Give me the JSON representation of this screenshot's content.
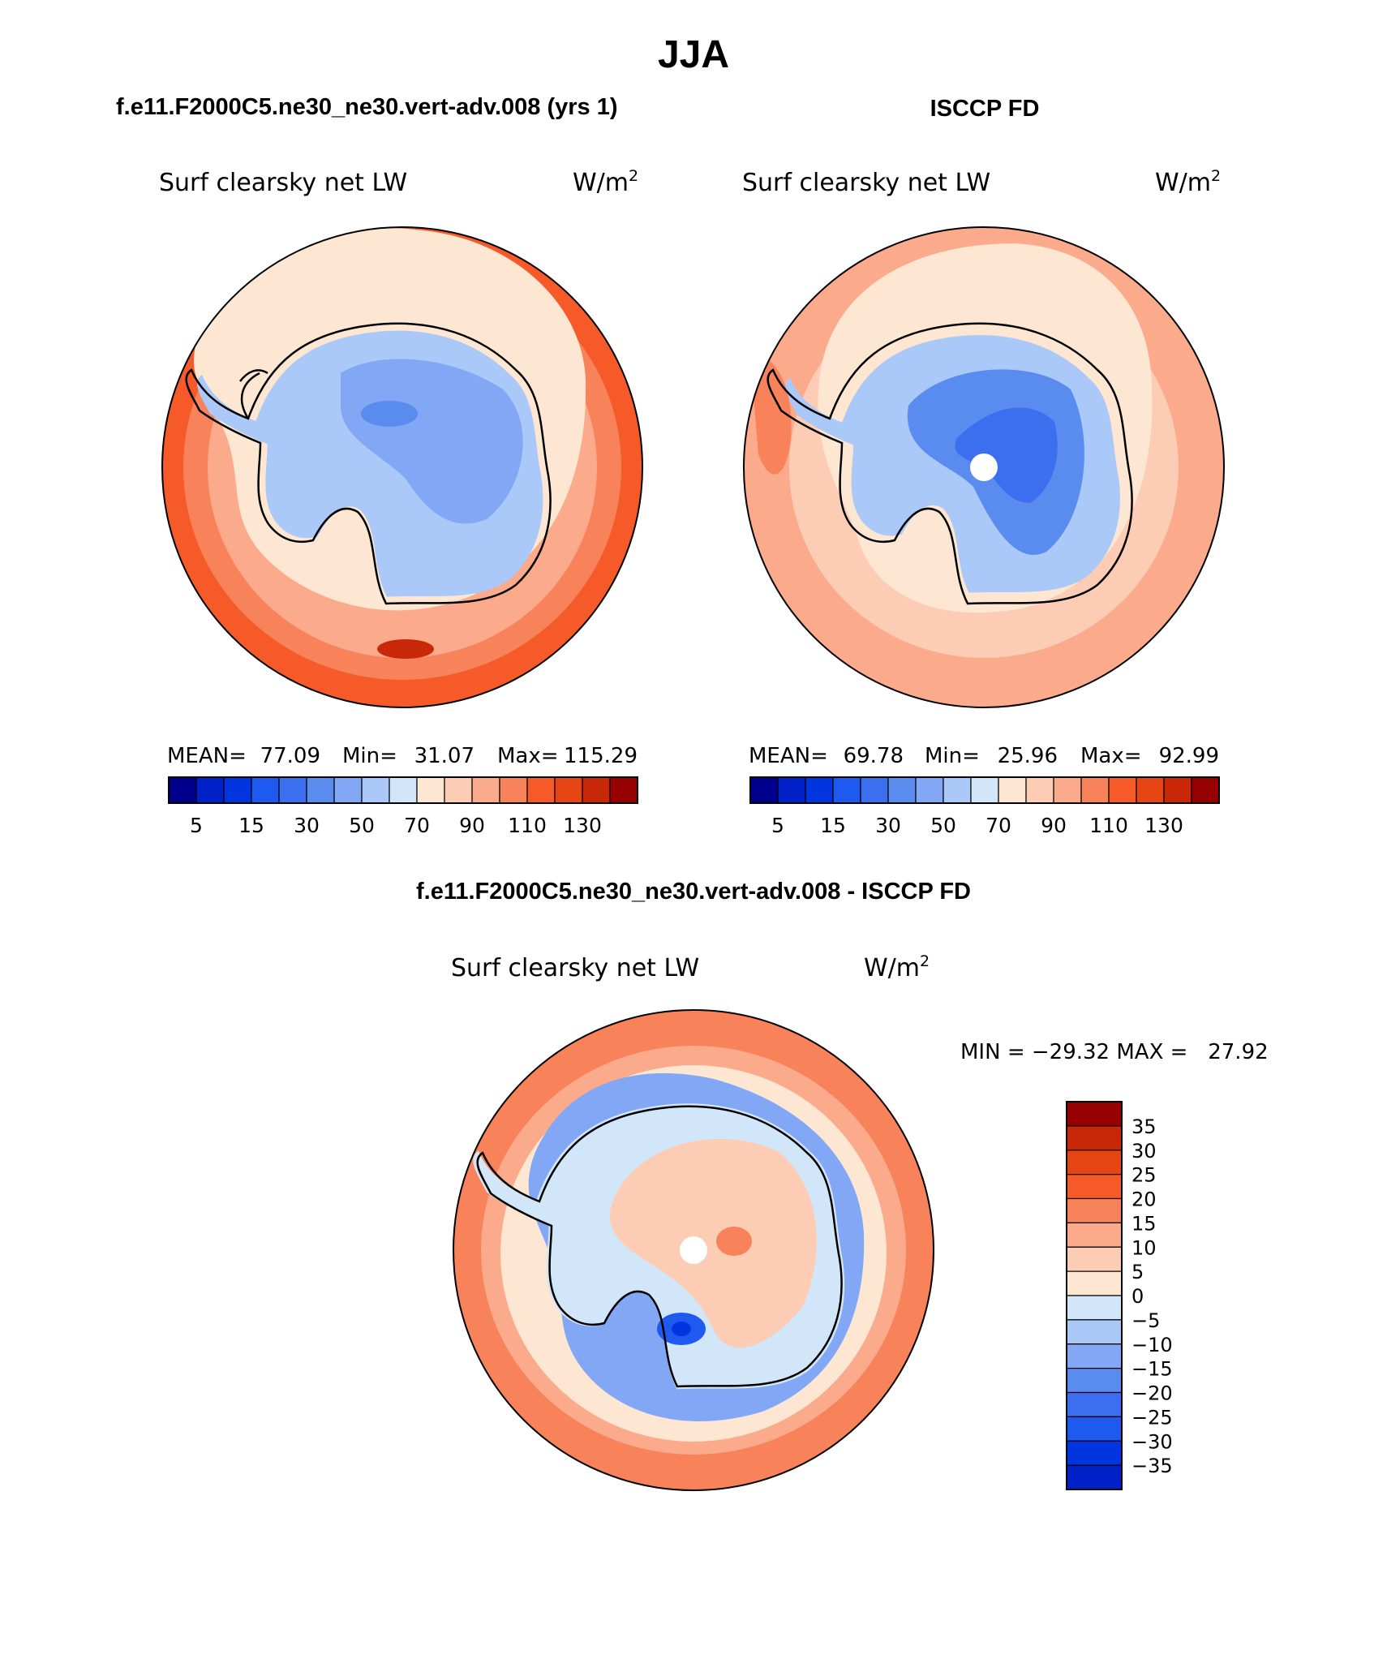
{
  "title": "JJA",
  "chart_data": [
    {
      "type": "heatmap",
      "panel": "top-left",
      "case_title": "f.e11.F2000C5.ne30_ne30.vert-adv.008 (yrs 1)",
      "variable": "Surf clearsky net LW",
      "units_base": "W/m",
      "units_exp": "2",
      "projection": "south-polar-stereographic",
      "stats": {
        "mean_label": "MEAN=",
        "mean": "77.09",
        "min_label": "Min=",
        "min": "31.07",
        "max_label": "Max=",
        "max": "115.29"
      },
      "colorbar": {
        "orientation": "horizontal",
        "tick_labels": [
          "5",
          "15",
          "30",
          "50",
          "70",
          "90",
          "110",
          "130"
        ],
        "colors": [
          "#00008c",
          "#0020c8",
          "#0035e0",
          "#1f5af0",
          "#3c6ef0",
          "#5a8cf0",
          "#82a8f5",
          "#aac8f8",
          "#d2e6fa",
          "#fde6d2",
          "#fccdb4",
          "#fbaa8c",
          "#f8825a",
          "#f55a28",
          "#e64614",
          "#c82808",
          "#960000"
        ]
      },
      "field_rings": [
        {
          "level": "outer-ocean",
          "color": "#f55a28"
        },
        {
          "level": "mid-ocean",
          "color": "#f8825a"
        },
        {
          "level": "sea-ice-edge",
          "color": "#fbaa8c"
        },
        {
          "level": "coast",
          "color": "#fde6d2"
        },
        {
          "level": "plateau",
          "color": "#aac8f8"
        },
        {
          "level": "interior",
          "color": "#82a8f5"
        }
      ]
    },
    {
      "type": "heatmap",
      "panel": "top-right",
      "case_title": "ISCCP FD",
      "variable": "Surf clearsky net LW",
      "units_base": "W/m",
      "units_exp": "2",
      "projection": "south-polar-stereographic",
      "stats": {
        "mean_label": "MEAN=",
        "mean": "69.78",
        "min_label": "Min=",
        "min": "25.96",
        "max_label": "Max=",
        "max": "92.99"
      },
      "colorbar": {
        "orientation": "horizontal",
        "tick_labels": [
          "5",
          "15",
          "30",
          "50",
          "70",
          "90",
          "110",
          "130"
        ],
        "colors": [
          "#00008c",
          "#0020c8",
          "#0035e0",
          "#1f5af0",
          "#3c6ef0",
          "#5a8cf0",
          "#82a8f5",
          "#aac8f8",
          "#d2e6fa",
          "#fde6d2",
          "#fccdb4",
          "#fbaa8c",
          "#f8825a",
          "#f55a28",
          "#e64614",
          "#c82808",
          "#960000"
        ]
      },
      "field_rings": [
        {
          "level": "outer-ocean",
          "color": "#fbaa8c"
        },
        {
          "level": "sea-ice-edge",
          "color": "#fccdb4"
        },
        {
          "level": "coast",
          "color": "#fde6d2"
        },
        {
          "level": "plateau",
          "color": "#aac8f8"
        },
        {
          "level": "interior",
          "color": "#5a8cf0"
        },
        {
          "level": "dome",
          "color": "#3c6ef0"
        }
      ]
    },
    {
      "type": "heatmap",
      "panel": "bottom",
      "case_title": "f.e11.F2000C5.ne30_ne30.vert-adv.008 - ISCCP FD",
      "variable": "Surf clearsky net LW",
      "units_base": "W/m",
      "units_exp": "2",
      "projection": "south-polar-stereographic",
      "stats_text": "MIN = −29.32 MAX =   27.92",
      "colorbar": {
        "orientation": "vertical",
        "tick_labels": [
          "35",
          "30",
          "25",
          "20",
          "15",
          "10",
          "5",
          "0",
          "−5",
          "−10",
          "−15",
          "−20",
          "−25",
          "−30",
          "−35"
        ],
        "colors": [
          "#960000",
          "#c82808",
          "#e64614",
          "#f55a28",
          "#f8825a",
          "#fbaa8c",
          "#fccdb4",
          "#fde6d2",
          "#d2e6fa",
          "#aac8f8",
          "#82a8f5",
          "#5a8cf0",
          "#3c6ef0",
          "#1f5af0",
          "#0035e0",
          "#0020c8"
        ]
      },
      "field_rings": [
        {
          "level": "outer-ocean",
          "color": "#f8825a"
        },
        {
          "level": "mid-ocean",
          "color": "#fbaa8c"
        },
        {
          "level": "sea-ice-edge",
          "color": "#fde6d2"
        },
        {
          "level": "coastal-ocean",
          "color": "#82a8f5"
        },
        {
          "level": "coast",
          "color": "#d2e6fa"
        },
        {
          "level": "interior",
          "color": "#fccdb4"
        }
      ]
    }
  ]
}
